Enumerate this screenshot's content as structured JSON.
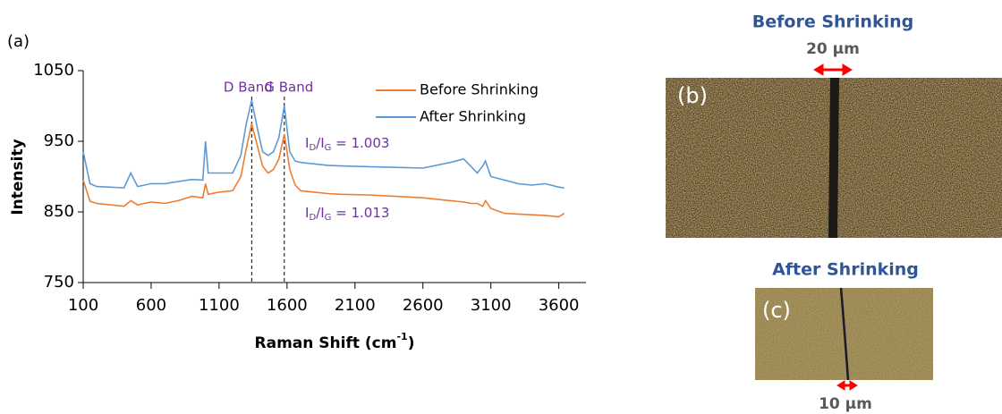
{
  "chart_data": {
    "type": "line",
    "panel_label": "(a)",
    "x_label_parts": [
      "Raman Shift (cm",
      "-1",
      ")"
    ],
    "y_label": "Intensity",
    "x": [
      100,
      150,
      200,
      300,
      400,
      450,
      500,
      600,
      700,
      800,
      900,
      980,
      1000,
      1020,
      1100,
      1200,
      1260,
      1300,
      1340,
      1380,
      1420,
      1460,
      1500,
      1540,
      1580,
      1620,
      1660,
      1700,
      1800,
      1900,
      2000,
      2200,
      2400,
      2600,
      2800,
      2900,
      2950,
      3000,
      3040,
      3060,
      3100,
      3200,
      3300,
      3400,
      3500,
      3600,
      3640
    ],
    "series": [
      {
        "name": "Before Shrinking",
        "color": "#ed7d31",
        "values": [
          895,
          865,
          862,
          860,
          858,
          866,
          860,
          864,
          862,
          866,
          872,
          870,
          890,
          875,
          878,
          880,
          900,
          940,
          975,
          945,
          915,
          905,
          910,
          925,
          960,
          910,
          888,
          880,
          878,
          876,
          875,
          874,
          872,
          870,
          866,
          864,
          862,
          862,
          858,
          866,
          855,
          848,
          847,
          846,
          845,
          843,
          848
        ]
      },
      {
        "name": "After Shrinking",
        "color": "#5b9bd5",
        "values": [
          935,
          890,
          886,
          885,
          884,
          905,
          886,
          890,
          890,
          893,
          896,
          895,
          950,
          905,
          905,
          905,
          930,
          975,
          1008,
          970,
          935,
          930,
          935,
          955,
          1000,
          935,
          922,
          920,
          918,
          916,
          915,
          914,
          913,
          912,
          920,
          925,
          915,
          905,
          915,
          922,
          900,
          895,
          890,
          888,
          890,
          885,
          884
        ]
      }
    ],
    "xlim": [
      100,
      3800
    ],
    "xticks": [
      100,
      600,
      1100,
      1600,
      2100,
      2600,
      3100,
      3600
    ],
    "ylim": [
      750,
      1050
    ],
    "yticks": [
      750,
      850,
      950,
      1050
    ],
    "bands": [
      {
        "label": "D Band",
        "x": 1340
      },
      {
        "label": "G Band",
        "x": 1580
      }
    ],
    "ratio_annotations": [
      [
        "I",
        "D",
        "/I",
        "G",
        " = 1.003"
      ],
      [
        "I",
        "D",
        "/I",
        "G",
        " = 1.013"
      ]
    ],
    "legend": "upper right"
  },
  "images": [
    {
      "label": "(b)",
      "title": "Before Shrinking",
      "scale": "20 µm"
    },
    {
      "label": "(c)",
      "title": "After Shrinking",
      "scale": "10 µm"
    }
  ]
}
